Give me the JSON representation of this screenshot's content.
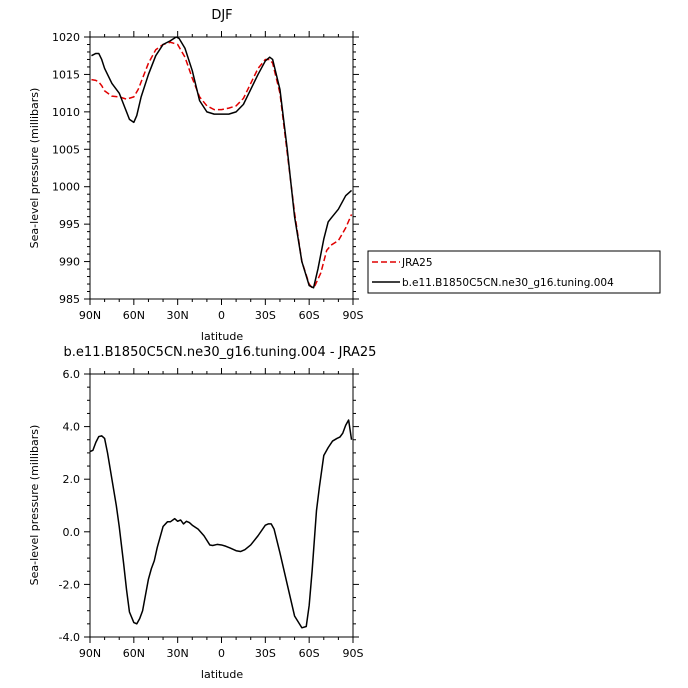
{
  "chart_data": [
    {
      "type": "line",
      "title": "DJF",
      "xlabel": "latitude",
      "ylabel": "Sea-level pressure (millibars)",
      "xlim": [
        90,
        -90
      ],
      "ylim": [
        985,
        1020
      ],
      "x_tick_values": [
        90,
        60,
        30,
        0,
        -30,
        -60,
        -90
      ],
      "x_tick_labels": [
        "90N",
        "60N",
        "30N",
        "0",
        "30S",
        "60S",
        "90S"
      ],
      "y_tick_values": [
        985,
        990,
        995,
        1000,
        1005,
        1010,
        1015,
        1020
      ],
      "y_tick_labels": [
        "985",
        "990",
        "995",
        "1000",
        "1005",
        "1010",
        "1015",
        "1020"
      ],
      "legend_position": "right",
      "series": [
        {
          "name": "JRA25",
          "color": "#e00000",
          "dash": "dashed",
          "x": [
            89,
            86,
            84,
            82,
            80,
            75,
            70,
            65,
            60,
            57,
            55,
            50,
            45,
            40,
            35,
            30,
            25,
            20,
            15,
            10,
            5,
            0,
            -5,
            -10,
            -15,
            -20,
            -25,
            -30,
            -33,
            -35,
            -40,
            -45,
            -50,
            -55,
            -60,
            -62,
            -64,
            -68,
            -72,
            -75,
            -80,
            -85,
            -89
          ],
          "y": [
            1014.3,
            1014.2,
            1014.0,
            1013.5,
            1012.8,
            1012.1,
            1012.0,
            1011.7,
            1012.0,
            1013.0,
            1014.0,
            1016.5,
            1018.3,
            1019.0,
            1019.3,
            1019.0,
            1017.3,
            1014.5,
            1012.0,
            1010.8,
            1010.3,
            1010.3,
            1010.5,
            1010.8,
            1011.8,
            1013.8,
            1015.8,
            1017.0,
            1017.0,
            1016.5,
            1012.5,
            1004.5,
            996.5,
            990.0,
            987.0,
            986.5,
            986.8,
            988.5,
            991.5,
            992.2,
            992.8,
            994.5,
            996.3
          ]
        },
        {
          "name": "b.e11.B1850C5CN.ne30_g16.tuning.004",
          "color": "#000000",
          "dash": "solid",
          "x": [
            89,
            86,
            84,
            82,
            80,
            75,
            70,
            66,
            63,
            60,
            58,
            55,
            50,
            45,
            40,
            35,
            31,
            29,
            25,
            20,
            15,
            10,
            5,
            0,
            -5,
            -10,
            -15,
            -20,
            -25,
            -30,
            -33,
            -35,
            -40,
            -45,
            -50,
            -55,
            -60,
            -63,
            -66,
            -70,
            -73,
            -75,
            -80,
            -85,
            -89
          ],
          "y": [
            1017.5,
            1017.8,
            1017.8,
            1017.0,
            1015.8,
            1013.8,
            1012.5,
            1010.5,
            1009.0,
            1008.6,
            1009.5,
            1012.0,
            1015.0,
            1017.5,
            1019.0,
            1019.5,
            1020.0,
            1019.8,
            1018.5,
            1015.5,
            1011.5,
            1010.0,
            1009.7,
            1009.7,
            1009.7,
            1010.0,
            1011.0,
            1013.0,
            1015.0,
            1016.8,
            1017.3,
            1017.0,
            1013.0,
            1005.0,
            996.0,
            990.0,
            986.8,
            986.5,
            989.0,
            993.0,
            995.3,
            995.8,
            997.0,
            998.8,
            999.5
          ]
        }
      ]
    },
    {
      "type": "line",
      "title": "b.e11.B1850C5CN.ne30_g16.tuning.004 - JRA25",
      "xlabel": "latitude",
      "ylabel": "Sea-level pressure (millibars)",
      "xlim": [
        90,
        -90
      ],
      "ylim": [
        -4.0,
        6.0
      ],
      "x_tick_values": [
        90,
        60,
        30,
        0,
        -30,
        -60,
        -90
      ],
      "x_tick_labels": [
        "90N",
        "60N",
        "30N",
        "0",
        "30S",
        "60S",
        "90S"
      ],
      "y_tick_values": [
        -4.0,
        -2.0,
        0.0,
        2.0,
        4.0,
        6.0
      ],
      "y_tick_labels": [
        "-4.0",
        "-2.0",
        "0.0",
        "2.0",
        "4.0",
        "6.0"
      ],
      "series": [
        {
          "color": "#000000",
          "dash": "solid",
          "x": [
            90,
            88,
            86,
            84,
            82,
            80,
            78,
            75,
            72,
            70,
            67,
            65,
            63,
            60,
            58,
            56,
            54,
            52,
            50,
            48,
            46,
            44,
            40,
            37,
            35,
            32,
            30,
            28,
            26,
            24,
            22,
            20,
            16,
            12,
            8,
            6,
            3,
            0,
            -3,
            -6,
            -10,
            -13,
            -16,
            -20,
            -25,
            -30,
            -32,
            -34,
            -36,
            -40,
            -45,
            -50,
            -55,
            -58,
            -60,
            -62,
            -65,
            -67,
            -70,
            -73,
            -76,
            -79,
            -81,
            -83,
            -85,
            -87,
            -89
          ],
          "y": [
            3.05,
            3.1,
            3.4,
            3.62,
            3.65,
            3.55,
            3.0,
            2.0,
            1.0,
            0.2,
            -1.2,
            -2.2,
            -3.05,
            -3.45,
            -3.5,
            -3.3,
            -3.0,
            -2.4,
            -1.8,
            -1.4,
            -1.1,
            -0.6,
            0.2,
            0.38,
            0.38,
            0.5,
            0.4,
            0.45,
            0.3,
            0.4,
            0.35,
            0.25,
            0.1,
            -0.15,
            -0.5,
            -0.52,
            -0.48,
            -0.5,
            -0.55,
            -0.62,
            -0.72,
            -0.75,
            -0.68,
            -0.5,
            -0.15,
            0.25,
            0.3,
            0.3,
            0.1,
            -0.8,
            -2.0,
            -3.2,
            -3.65,
            -3.6,
            -2.8,
            -1.5,
            0.8,
            1.7,
            2.9,
            3.2,
            3.45,
            3.55,
            3.6,
            3.75,
            4.05,
            4.25,
            3.5
          ]
        }
      ]
    }
  ]
}
